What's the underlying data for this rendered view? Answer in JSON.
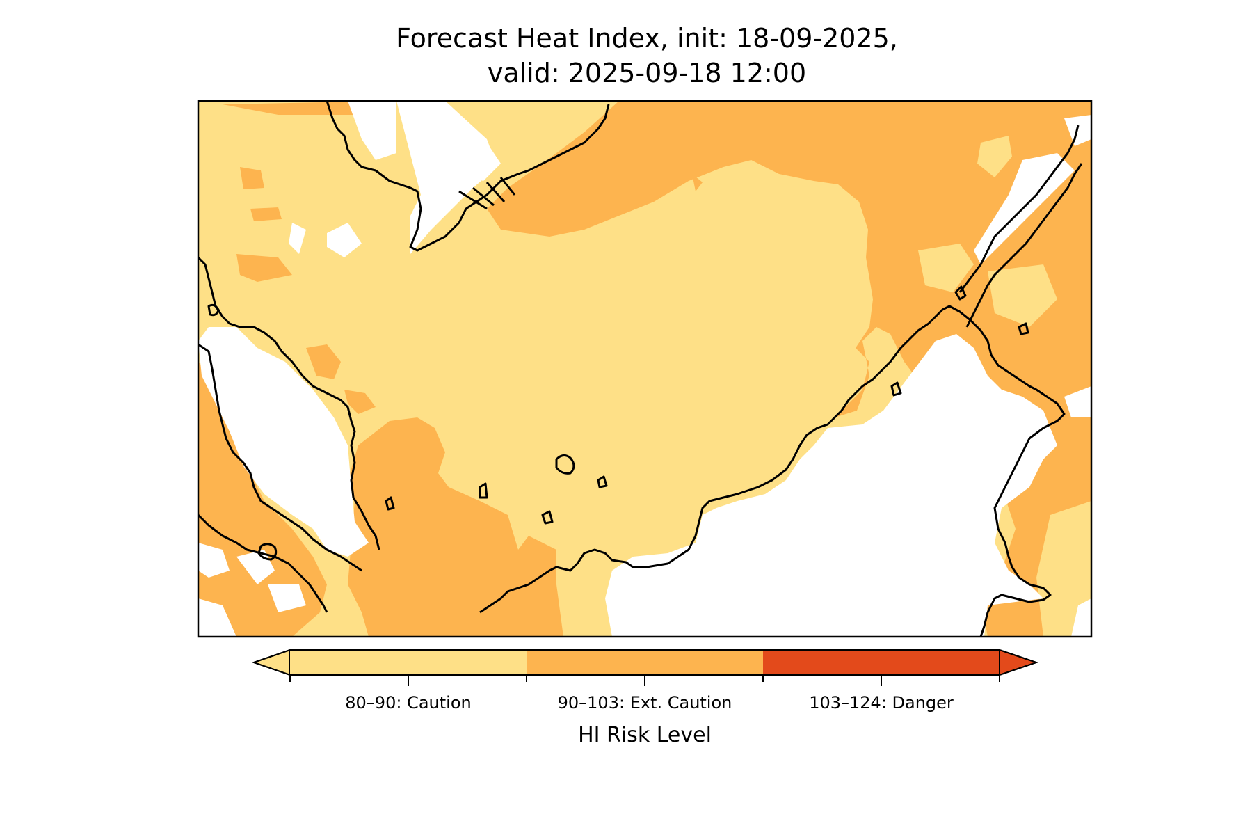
{
  "title": {
    "line1": "Forecast Heat Index, init: 18-09-2025,",
    "line2": "valid: 2025-09-18 12:00"
  },
  "colors": {
    "caution": "#fee087",
    "extreme_caution": "#fdb44f",
    "danger": "#e34a1b",
    "land_outline": "#000000",
    "no_data": "#ffffff"
  },
  "colorbar": {
    "label": "HI Risk Level",
    "extend": "both",
    "levels": [
      {
        "label": "80–90: Caution",
        "range": [
          80,
          90
        ],
        "color": "#fee087"
      },
      {
        "label": "90–103: Ext. Caution",
        "range": [
          90,
          103
        ],
        "color": "#fdb44f"
      },
      {
        "label": "103–124: Danger",
        "range": [
          103,
          124
        ],
        "color": "#e34a1b"
      }
    ]
  }
}
